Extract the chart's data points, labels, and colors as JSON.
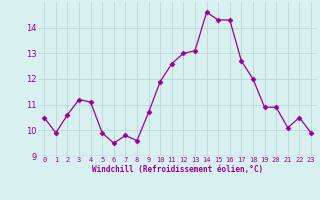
{
  "x": [
    0,
    1,
    2,
    3,
    4,
    5,
    6,
    7,
    8,
    9,
    10,
    11,
    12,
    13,
    14,
    15,
    16,
    17,
    18,
    19,
    20,
    21,
    22,
    23
  ],
  "y": [
    10.5,
    9.9,
    10.6,
    11.2,
    11.1,
    9.9,
    9.5,
    9.8,
    9.6,
    10.7,
    11.9,
    12.6,
    13.0,
    13.1,
    14.6,
    14.3,
    14.3,
    12.7,
    12.0,
    10.9,
    10.9,
    10.1,
    10.5,
    9.9
  ],
  "line_color": "#990099",
  "marker": "D",
  "marker_size": 2.5,
  "bg_color": "#d8f0f0",
  "grid_color": "#b8dada",
  "xlabel": "Windchill (Refroidissement éolien,°C)",
  "xlabel_color": "#990099",
  "tick_color": "#990099",
  "ylim": [
    9.0,
    15.0
  ],
  "xlim": [
    -0.5,
    23.5
  ],
  "yticks": [
    9,
    10,
    11,
    12,
    13,
    14
  ],
  "xticks": [
    0,
    1,
    2,
    3,
    4,
    5,
    6,
    7,
    8,
    9,
    10,
    11,
    12,
    13,
    14,
    15,
    16,
    17,
    18,
    19,
    20,
    21,
    22,
    23
  ],
  "xtick_labels": [
    "0",
    "1",
    "2",
    "3",
    "4",
    "5",
    "6",
    "7",
    "8",
    "9",
    "10",
    "11",
    "12",
    "13",
    "14",
    "15",
    "16",
    "17",
    "18",
    "19",
    "20",
    "21",
    "22",
    "23"
  ]
}
